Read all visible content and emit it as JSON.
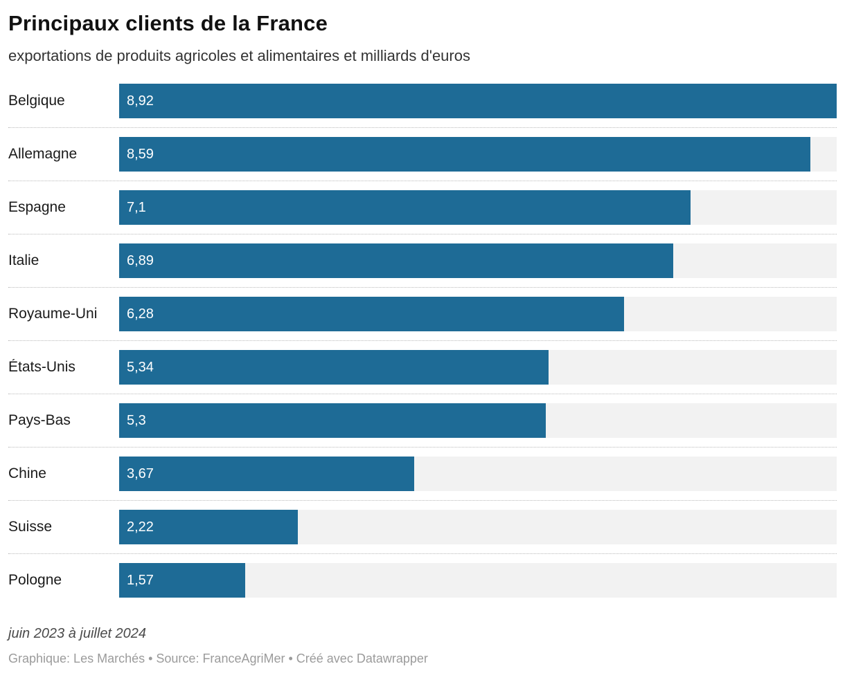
{
  "chart_data": {
    "type": "bar",
    "title": "Principaux clients de la France",
    "subtitle": "exportations de produits agricoles et alimentaires et milliards d'euros",
    "categories": [
      "Belgique",
      "Allemagne",
      "Espagne",
      "Italie",
      "Royaume-Uni",
      "États-Unis",
      "Pays-Bas",
      "Chine",
      "Suisse",
      "Pologne"
    ],
    "values": [
      8.92,
      8.59,
      7.1,
      6.89,
      6.28,
      5.34,
      5.3,
      3.67,
      2.22,
      1.57
    ],
    "value_labels": [
      "8,92",
      "8,59",
      "7,1",
      "6,89",
      "6,28",
      "5,34",
      "5,3",
      "3,67",
      "2,22",
      "1,57"
    ],
    "xlim": [
      0,
      8.92
    ],
    "orientation": "horizontal",
    "grid": false,
    "legend": "none",
    "bar_color": "#1e6b96",
    "track_color": "#f2f2f2",
    "note": "juin 2023 à juillet 2024",
    "credit": "Graphique: Les Marchés • Source: FranceAgriMer • Créé avec Datawrapper"
  }
}
